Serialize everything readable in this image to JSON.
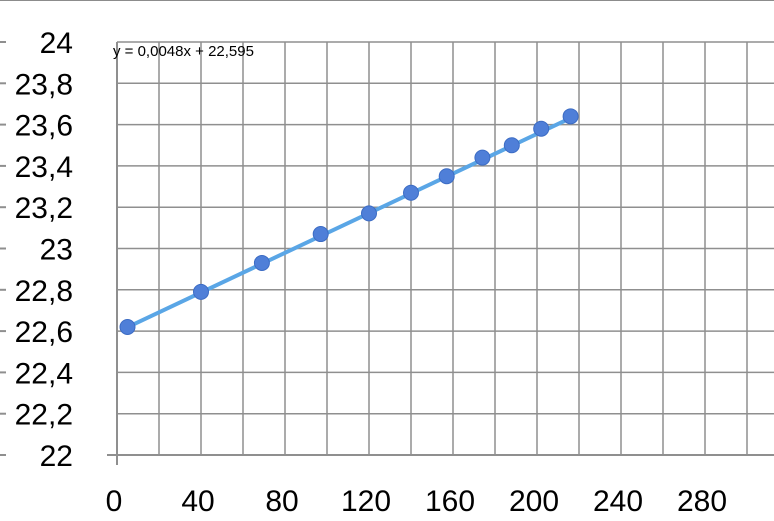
{
  "chart_data": {
    "type": "scatter",
    "title": "",
    "xlabel": "",
    "ylabel": "",
    "xlim": [
      0,
      300
    ],
    "ylim": [
      22,
      24
    ],
    "x_ticks": [
      0,
      40,
      80,
      120,
      160,
      200,
      240,
      280
    ],
    "x_tick_labels": [
      "0",
      "40",
      "80",
      "120",
      "160",
      "200",
      "240",
      "280"
    ],
    "y_ticks": [
      22,
      22.2,
      22.4,
      22.6,
      22.8,
      23,
      23.2,
      23.4,
      23.6,
      23.8,
      24
    ],
    "y_tick_labels": [
      "22",
      "22,2",
      "22,4",
      "22,6",
      "22,8",
      "23",
      "23,2",
      "23,4",
      "23,6",
      "23,8",
      "24"
    ],
    "grid": true,
    "series": [
      {
        "x": [
          5,
          40,
          69,
          97,
          120,
          140,
          157,
          174,
          188,
          202,
          216
        ],
        "y": [
          22.62,
          22.79,
          22.93,
          23.07,
          23.17,
          23.27,
          23.35,
          23.44,
          23.5,
          23.58,
          23.64
        ],
        "color": "#4f7fd8"
      }
    ],
    "trendline": {
      "slope": 0.0048,
      "intercept": 22.595,
      "x_range": [
        5,
        216
      ],
      "color": "#5aa6e6",
      "label": "y = 0,0048x + 22,595"
    }
  }
}
